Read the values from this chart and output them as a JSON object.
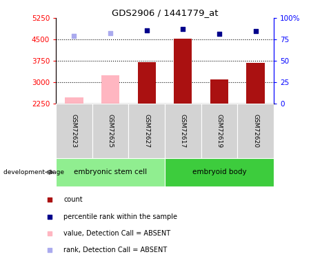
{
  "title": "GDS2906 / 1441779_at",
  "samples": [
    "GSM72623",
    "GSM72625",
    "GSM72627",
    "GSM72617",
    "GSM72619",
    "GSM72620"
  ],
  "groups": [
    {
      "name": "embryonic stem cell",
      "samples": [
        0,
        1,
        2
      ],
      "color": "#90EE90"
    },
    {
      "name": "embryoid body",
      "samples": [
        3,
        4,
        5
      ],
      "color": "#3DCC3D"
    }
  ],
  "bar_values": [
    2480,
    3250,
    3700,
    4520,
    3100,
    3670
  ],
  "bar_absent": [
    true,
    true,
    false,
    false,
    false,
    false
  ],
  "bar_color_present": "#AA1111",
  "bar_color_absent": "#FFB6C1",
  "rank_values": [
    4620,
    4730,
    4820,
    4880,
    4710,
    4800
  ],
  "rank_absent": [
    true,
    true,
    false,
    false,
    false,
    false
  ],
  "rank_color_present": "#00008B",
  "rank_color_absent": "#AAAAEE",
  "ylim_left": [
    2250,
    5250
  ],
  "ylim_right": [
    0,
    100
  ],
  "yticks_left": [
    2250,
    3000,
    3750,
    4500,
    5250
  ],
  "yticks_right": [
    0,
    25,
    50,
    75,
    100
  ],
  "ytick_labels_right": [
    "0",
    "25",
    "50",
    "75",
    "100%"
  ],
  "bar_width": 0.5,
  "baseline": 2250,
  "bg_color": "#FFFFFF",
  "grid_color": "#000000",
  "sample_bg_color": "#D3D3D3",
  "legend_items": [
    {
      "color": "#AA1111",
      "label": "count"
    },
    {
      "color": "#00008B",
      "label": "percentile rank within the sample"
    },
    {
      "color": "#FFB6C1",
      "label": "value, Detection Call = ABSENT"
    },
    {
      "color": "#AAAAEE",
      "label": "rank, Detection Call = ABSENT"
    }
  ]
}
